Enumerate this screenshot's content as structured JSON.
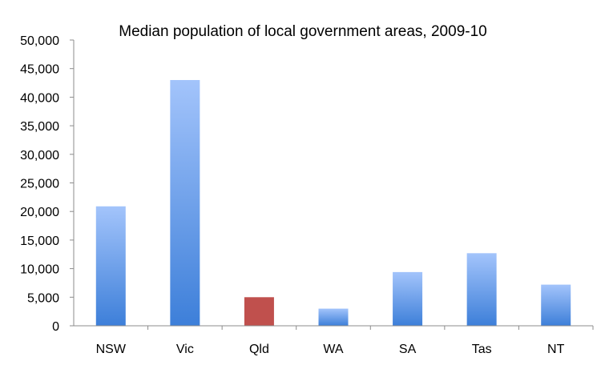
{
  "chart_data": {
    "type": "bar",
    "title": "Median population of local government areas, 2009-10",
    "xlabel": "",
    "ylabel": "",
    "categories": [
      "NSW",
      "Vic",
      "Qld",
      "WA",
      "SA",
      "Tas",
      "NT"
    ],
    "values": [
      20900,
      43000,
      5000,
      3000,
      9400,
      12700,
      7200
    ],
    "bar_styles": [
      "gradient-blue",
      "gradient-blue",
      "solid-red",
      "gradient-blue",
      "gradient-blue",
      "gradient-blue",
      "gradient-blue"
    ],
    "ylim": [
      0,
      50000
    ],
    "yticks": [
      "0",
      "5,000",
      "10,000",
      "15,000",
      "20,000",
      "25,000",
      "30,000",
      "35,000",
      "40,000",
      "45,000",
      "50,000"
    ],
    "ytick_values": [
      0,
      5000,
      10000,
      15000,
      20000,
      25000,
      30000,
      35000,
      40000,
      45000,
      50000
    ],
    "grid": false,
    "legend": "none",
    "colors": {
      "bar_top": "#a3c4fb",
      "bar_bottom": "#3d7fd9",
      "highlight": "#c0504d",
      "axis": "#8c8c8c",
      "text": "#000000"
    }
  }
}
